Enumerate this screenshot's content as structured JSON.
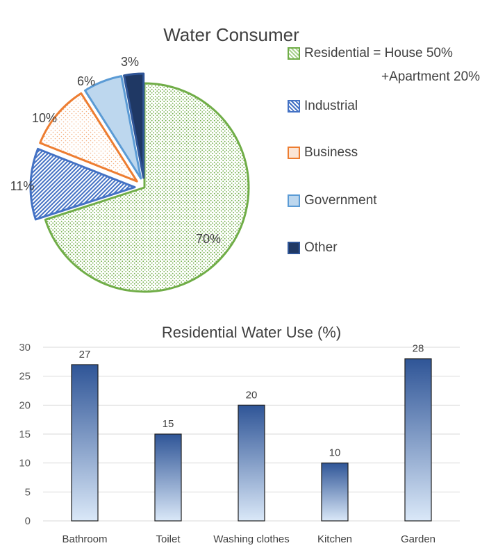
{
  "colors": {
    "residential": "#70ad47",
    "industrial": "#4472c4",
    "business": "#ed7d31",
    "government": "#5b9bd5",
    "other": "#1f3864",
    "bar_top": "#2f5597",
    "bar_bottom": "#dae8f8",
    "grid": "#d9d9d9",
    "text": "#404040"
  },
  "chart_data": [
    {
      "type": "pie",
      "title": "Water Consumer",
      "slices": [
        {
          "name": "Residential",
          "value": 70,
          "label": "70%",
          "legend": "Residential = House 50%",
          "exploded": false
        },
        {
          "name": "Industrial",
          "value": 11,
          "label": "11%",
          "legend": "Industrial",
          "exploded": true
        },
        {
          "name": "Business",
          "value": 10,
          "label": "10%",
          "legend": "Business",
          "exploded": true
        },
        {
          "name": "Government",
          "value": 6,
          "label": "6%",
          "legend": "Government",
          "exploded": true
        },
        {
          "name": "Other",
          "value": 3,
          "label": "3%",
          "legend": "Other",
          "exploded": true
        }
      ],
      "legend_note": "+Apartment 20%",
      "legend_position": "right"
    },
    {
      "type": "bar",
      "title": "Residential Water Use (%)",
      "categories": [
        "Bathroom",
        "Toilet",
        "Washing clothes",
        "Kitchen",
        "Garden"
      ],
      "values": [
        27,
        15,
        20,
        10,
        28
      ],
      "value_labels": [
        "27",
        "15",
        "20",
        "10",
        "28"
      ],
      "ylim": [
        0,
        30
      ],
      "yticks": [
        "0",
        "5",
        "10",
        "15",
        "20",
        "25",
        "30"
      ],
      "grid": true,
      "xlabel": "",
      "ylabel": ""
    }
  ]
}
